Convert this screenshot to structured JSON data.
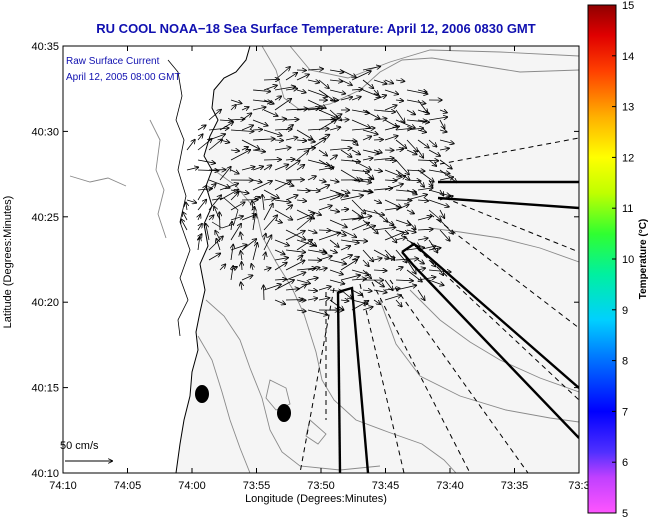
{
  "title": "RU COOL  NOAA−18  Sea Surface Temperature:  April 12, 2006 0830 GMT",
  "legend": {
    "line1": "Raw Surface Current",
    "line2": "April 12, 2005 08:00 GMT"
  },
  "scale": {
    "label": "50 cm/s"
  },
  "axes": {
    "xlabel": "Longitude (Degrees:Minutes)",
    "ylabel": "Latitude (Degrees:Minutes)",
    "xticks": [
      "74:10",
      "74:05",
      "74:00",
      "73:55",
      "73:50",
      "73:45",
      "73:40",
      "73:35",
      "73:3"
    ],
    "yticks": [
      "40:35",
      "40:30",
      "40:25",
      "40:20",
      "40:15",
      "40:10"
    ]
  },
  "colorbar": {
    "label": "Temperature (°C)",
    "ticks": [
      "15",
      "14",
      "13",
      "12",
      "11",
      "10",
      "9",
      "8",
      "7",
      "6",
      "5"
    ],
    "min": 5,
    "max": 15
  },
  "colors": {
    "title": "#1010b0",
    "land": "#ffffff",
    "water": "#f5f5f5",
    "coast": "#000000",
    "contours": "#8a8a8a"
  }
}
